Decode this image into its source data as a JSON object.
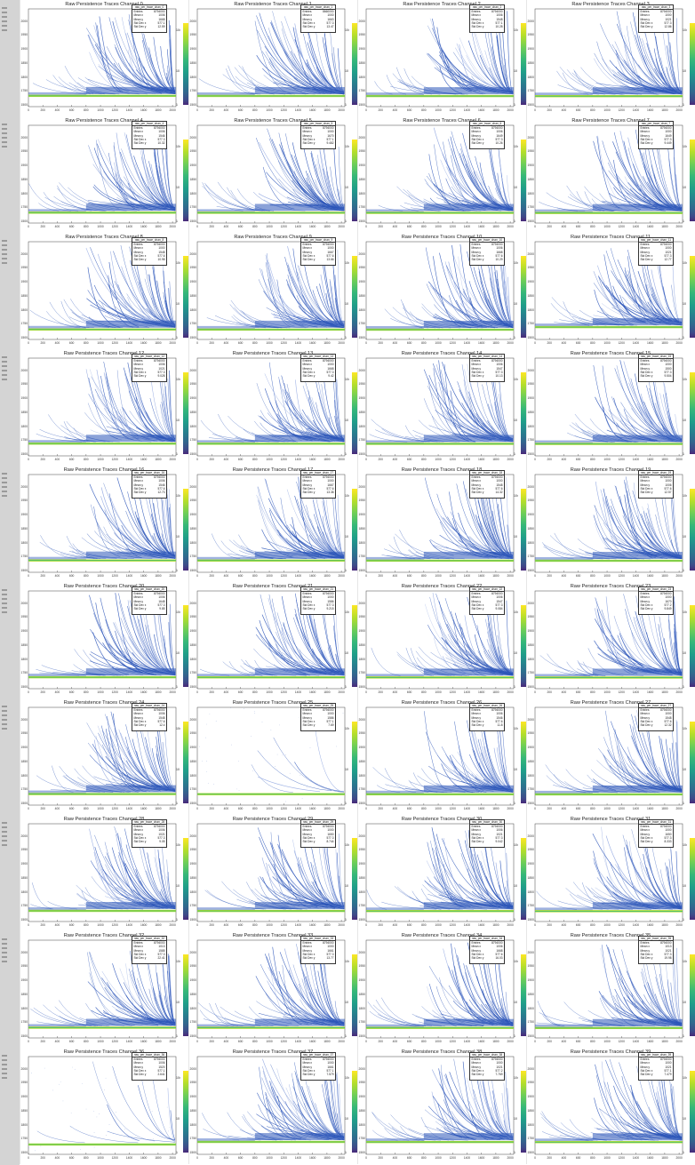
{
  "chart_data": {
    "type": "heatmap",
    "title_prefix": "Raw Persistence Traces Channel",
    "stats_labels": [
      "Entries",
      "Mean x",
      "Mean y",
      "Std Dev x",
      "Std Dev y"
    ],
    "x_ticks": [
      "0",
      "200",
      "400",
      "600",
      "800",
      "1000",
      "1200",
      "1400",
      "1600",
      "1800",
      "2000"
    ],
    "y_ticks": [
      "1500",
      "1750",
      "1800",
      "1850",
      "1900",
      "1950",
      "2000"
    ],
    "colorbar_ticks": [
      "10²",
      "10",
      "1"
    ],
    "xlim": [
      0,
      2048
    ],
    "ylim": [
      1500,
      2000
    ],
    "panels": [
      {
        "title": "Raw Persistence Traces Channel 0",
        "stats_name": "raw_per_trace_chan_0",
        "entries": "8794000",
        "mean_x": "1006",
        "mean_y": "1668",
        "std_x": "577.1",
        "std_y": "12.59",
        "density": 1
      },
      {
        "title": "Raw Persistence Traces Channel 1",
        "stats_name": "raw_per_trace_chan_1",
        "entries": "8660000",
        "mean_x": "1000",
        "mean_y": "1663",
        "std_x": "577.3",
        "std_y": "13.47",
        "density": 1
      },
      {
        "title": "Raw Persistence Traces Channel 2",
        "stats_name": "raw_per_trace_chan_2",
        "entries": "8794000",
        "mean_x": "1006",
        "mean_y": "1548",
        "std_x": "577.1",
        "std_y": "10.28",
        "density": 1
      },
      {
        "title": "Raw Persistence Traces Channel 3",
        "stats_name": "raw_per_trace_chan_3",
        "entries": "8794000",
        "mean_x": "1000",
        "mean_y": "1021",
        "std_x": "577.3",
        "std_y": "12.86",
        "density": 1
      },
      {
        "title": "Raw Persistence Traces Channel 4",
        "stats_name": "raw_per_trace_chan_4",
        "entries": "8794000",
        "mean_x": "1006",
        "mean_y": "1546",
        "std_x": "577.3",
        "std_y": "10.32",
        "density": 1
      },
      {
        "title": "Raw Persistence Traces Channel 5",
        "stats_name": "raw_per_trace_chan_5",
        "entries": "8794000",
        "mean_x": "1000",
        "mean_y": "1670",
        "std_x": "577.1",
        "std_y": "9.482",
        "density": 1
      },
      {
        "title": "Raw Persistence Traces Channel 6",
        "stats_name": "raw_per_trace_chan_6",
        "entries": "8794000",
        "mean_x": "1006",
        "mean_y": "1649",
        "std_x": "577.3",
        "std_y": "10.26",
        "density": 1
      },
      {
        "title": "Raw Persistence Traces Channel 7",
        "stats_name": "raw_per_trace_chan_7",
        "entries": "8794000",
        "mean_x": "1000",
        "mean_y": "1649",
        "std_x": "577.3",
        "std_y": "9.449",
        "density": 1
      },
      {
        "title": "Raw Persistence Traces Channel 8",
        "stats_name": "raw_per_trace_chan_8",
        "entries": "8794000",
        "mean_x": "1000",
        "mean_y": "1548",
        "std_x": "577.6",
        "std_y": "10.98",
        "density": 1
      },
      {
        "title": "Raw Persistence Traces Channel 9",
        "stats_name": "raw_per_trace_chan_9",
        "entries": "8794000",
        "mean_x": "1000",
        "mean_y": "1667",
        "std_x": "577.6",
        "std_y": "13.66",
        "density": 1
      },
      {
        "title": "Raw Persistence Traces Channel 10",
        "stats_name": "raw_per_trace_chan_10",
        "entries": "8794000",
        "mean_x": "1006",
        "mean_y": "1668",
        "std_x": "577.6",
        "std_y": "10.29",
        "density": 1
      },
      {
        "title": "Raw Persistence Traces Channel 11",
        "stats_name": "raw_per_trace_chan_11",
        "entries": "8794000",
        "mean_x": "1000",
        "mean_y": "1021",
        "std_x": "577.3",
        "std_y": "12.77",
        "density": 1
      },
      {
        "title": "Raw Persistence Traces Channel 12",
        "stats_name": "raw_per_trace_chan_12",
        "entries": "8794000",
        "mean_x": "1006",
        "mean_y": "1021",
        "std_x": "577.3",
        "std_y": "9.028",
        "density": 1
      },
      {
        "title": "Raw Persistence Traces Channel 13",
        "stats_name": "raw_per_trace_chan_13",
        "entries": "8794000",
        "mean_x": "1000",
        "mean_y": "1668",
        "std_x": "577.3",
        "std_y": "9.42",
        "density": 1
      },
      {
        "title": "Raw Persistence Traces Channel 14",
        "stats_name": "raw_per_trace_chan_14",
        "entries": "8794000",
        "mean_x": "1006",
        "mean_y": "1547",
        "std_x": "577.3",
        "std_y": "10.13",
        "density": 1
      },
      {
        "title": "Raw Persistence Traces Channel 15",
        "stats_name": "raw_per_trace_chan_15",
        "entries": "8794000",
        "mean_x": "1000",
        "mean_y": "1500",
        "std_x": "577.3",
        "std_y": "9.504",
        "density": 1
      },
      {
        "title": "Raw Persistence Traces Channel 16",
        "stats_name": "raw_per_trace_chan_16",
        "entries": "8794000",
        "mean_x": "1006",
        "mean_y": "1546",
        "std_x": "577.6",
        "std_y": "12.73",
        "density": 1
      },
      {
        "title": "Raw Persistence Traces Channel 17",
        "stats_name": "raw_per_trace_chan_17",
        "entries": "8794000",
        "mean_x": "1000",
        "mean_y": "1667",
        "std_x": "577.6",
        "std_y": "13.38",
        "density": 1
      },
      {
        "title": "Raw Persistence Traces Channel 18",
        "stats_name": "raw_per_trace_chan_18",
        "entries": "8794000",
        "mean_x": "1000",
        "mean_y": "1548",
        "std_x": "577.6",
        "std_y": "14.32",
        "density": 1
      },
      {
        "title": "Raw Persistence Traces Channel 19",
        "stats_name": "raw_per_trace_chan_19",
        "entries": "8794000",
        "mean_x": "1000",
        "mean_y": "1006",
        "std_x": "577.6",
        "std_y": "12.57",
        "density": 1
      },
      {
        "title": "Raw Persistence Traces Channel 20",
        "stats_name": "raw_per_trace_chan_20",
        "entries": "8794000",
        "mean_x": "1006",
        "mean_y": "1648",
        "std_x": "577.3",
        "std_y": "9.85",
        "density": 1
      },
      {
        "title": "Raw Persistence Traces Channel 21",
        "stats_name": "raw_per_trace_chan_21",
        "entries": "8794000",
        "mean_x": "1000",
        "mean_y": "1586",
        "std_x": "577.3",
        "std_y": "9.215",
        "density": 1
      },
      {
        "title": "Raw Persistence Traces Channel 22",
        "stats_name": "raw_per_trace_chan_22",
        "entries": "8794000",
        "mean_x": "1006",
        "mean_y": "1547",
        "std_x": "577.3",
        "std_y": "9.084",
        "density": 1
      },
      {
        "title": "Raw Persistence Traces Channel 23",
        "stats_name": "raw_per_trace_chan_23",
        "entries": "8794000",
        "mean_x": "1000",
        "mean_y": "1670",
        "std_x": "577.2",
        "std_y": "9.849",
        "density": 1
      },
      {
        "title": "Raw Persistence Traces Channel 24",
        "stats_name": "raw_per_trace_chan_24",
        "entries": "8794000",
        "mean_x": "1006",
        "mean_y": "1548",
        "std_x": "577.6",
        "std_y": "12.4",
        "density": 1
      },
      {
        "title": "Raw Persistence Traces Channel 25",
        "stats_name": "raw_per_trace_chan_25",
        "entries": "8794000",
        "mean_x": "1000",
        "mean_y": "1586",
        "std_x": "577.1",
        "std_y": "7.69",
        "density": 0.08
      },
      {
        "title": "Raw Persistence Traces Channel 26",
        "stats_name": "raw_per_trace_chan_26",
        "entries": "8794000",
        "mean_x": "1006",
        "mean_y": "1546",
        "std_x": "577.6",
        "std_y": "11.8",
        "density": 1
      },
      {
        "title": "Raw Persistence Traces Channel 27",
        "stats_name": "raw_per_trace_chan_27",
        "entries": "8794000",
        "mean_x": "1000",
        "mean_y": "1548",
        "std_x": "577.6",
        "std_y": "12.32",
        "density": 1
      },
      {
        "title": "Raw Persistence Traces Channel 28",
        "stats_name": "raw_per_trace_chan_28",
        "entries": "8794000",
        "mean_x": "1006",
        "mean_y": "1021",
        "std_x": "577.3",
        "std_y": "9.05",
        "density": 1
      },
      {
        "title": "Raw Persistence Traces Channel 29",
        "stats_name": "raw_per_trace_chan_29",
        "entries": "8794000",
        "mean_x": "1000",
        "mean_y": "1650",
        "std_x": "577.3",
        "std_y": "8.744",
        "density": 1
      },
      {
        "title": "Raw Persistence Traces Channel 30",
        "stats_name": "raw_per_trace_chan_30",
        "entries": "8794000",
        "mean_x": "1006",
        "mean_y": "1021",
        "std_x": "577.3",
        "std_y": "9.042",
        "density": 1
      },
      {
        "title": "Raw Persistence Traces Channel 31",
        "stats_name": "raw_per_trace_chan_31",
        "entries": "8794000",
        "mean_x": "1000",
        "mean_y": "1650",
        "std_x": "577.3",
        "std_y": "8.333",
        "density": 1
      },
      {
        "title": "Raw Persistence Traces Channel 32",
        "stats_name": "raw_per_trace_chan_32",
        "entries": "8794000",
        "mean_x": "1013",
        "mean_y": "1585",
        "std_x": "577.3",
        "std_y": "22.41",
        "density": 1
      },
      {
        "title": "Raw Persistence Traces Channel 33",
        "stats_name": "raw_per_trace_chan_33",
        "entries": "8794000",
        "mean_x": "1000",
        "mean_y": "1661",
        "std_x": "577.3",
        "std_y": "13.77",
        "density": 1
      },
      {
        "title": "Raw Persistence Traces Channel 34",
        "stats_name": "raw_per_trace_chan_34",
        "entries": "8794000",
        "mean_x": "1006",
        "mean_y": "1668",
        "std_x": "577.6",
        "std_y": "16.03",
        "density": 1
      },
      {
        "title": "Raw Persistence Traces Channel 35",
        "stats_name": "raw_per_trace_chan_35",
        "entries": "8794000",
        "mean_x": "1013",
        "mean_y": "1021",
        "std_x": "577.3",
        "std_y": "19.98",
        "density": 1
      },
      {
        "title": "Raw Persistence Traces Channel 36",
        "stats_name": "raw_per_trace_chan_36",
        "entries": "8794000",
        "mean_x": "1006",
        "mean_y": "1520",
        "std_x": "577.1",
        "std_y": "2.641",
        "density": 0.15
      },
      {
        "title": "Raw Persistence Traces Channel 37",
        "stats_name": "raw_per_trace_chan_37",
        "entries": "8794000",
        "mean_x": "1000",
        "mean_y": "1661",
        "std_x": "577.1",
        "std_y": "7.579",
        "density": 1
      },
      {
        "title": "Raw Persistence Traces Channel 38",
        "stats_name": "raw_per_trace_chan_38",
        "entries": "8794000",
        "mean_x": "1000",
        "mean_y": "1021",
        "std_x": "577.2",
        "std_y": "7.769",
        "density": 1
      },
      {
        "title": "Raw Persistence Traces Channel 39",
        "stats_name": "raw_per_trace_chan_39",
        "entries": "8794000",
        "mean_x": "1000",
        "mean_y": "1021",
        "std_x": "577.1",
        "std_y": "7.479",
        "density": 1
      }
    ]
  },
  "colors": {
    "trace": "#2b55b8",
    "trace_light": "#8fa6e0",
    "baseline": "#b5de2b",
    "baseline_core": "#35b779",
    "strip": "#d4d4d4"
  }
}
